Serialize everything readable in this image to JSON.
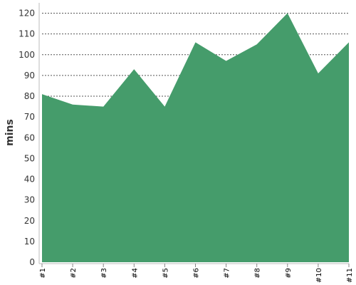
{
  "chart_data": {
    "type": "area",
    "title": "",
    "xlabel": "",
    "ylabel": "mins",
    "categories": [
      "#1",
      "#2",
      "#3",
      "#4",
      "#5",
      "#6",
      "#7",
      "#8",
      "#9",
      "#10",
      "#11"
    ],
    "series": [
      {
        "values": [
          81,
          76,
          75,
          93,
          75,
          106,
          97,
          105,
          120,
          91,
          106
        ]
      }
    ],
    "ylim": [
      0,
      125
    ],
    "yticks": [
      0,
      10,
      20,
      30,
      40,
      50,
      60,
      70,
      80,
      90,
      100,
      110,
      120
    ],
    "grid": true,
    "fill_color": "#459c6b"
  }
}
